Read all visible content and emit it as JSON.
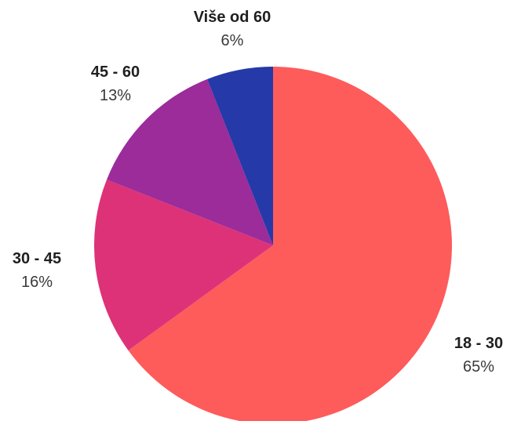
{
  "chart_data": {
    "type": "pie",
    "title": "",
    "start_angle_deg": 0,
    "direction": "clockwise",
    "slices": [
      {
        "label": "18 - 30",
        "value": 65,
        "display": "65%",
        "color": "#fe5b5b"
      },
      {
        "label": "30 - 45",
        "value": 16,
        "display": "16%",
        "color": "#dd3278"
      },
      {
        "label": "45 - 60",
        "value": 13,
        "display": "13%",
        "color": "#9b2c9a"
      },
      {
        "label": "Više od 60",
        "value": 6,
        "display": "6%",
        "color": "#2539a8"
      }
    ]
  }
}
